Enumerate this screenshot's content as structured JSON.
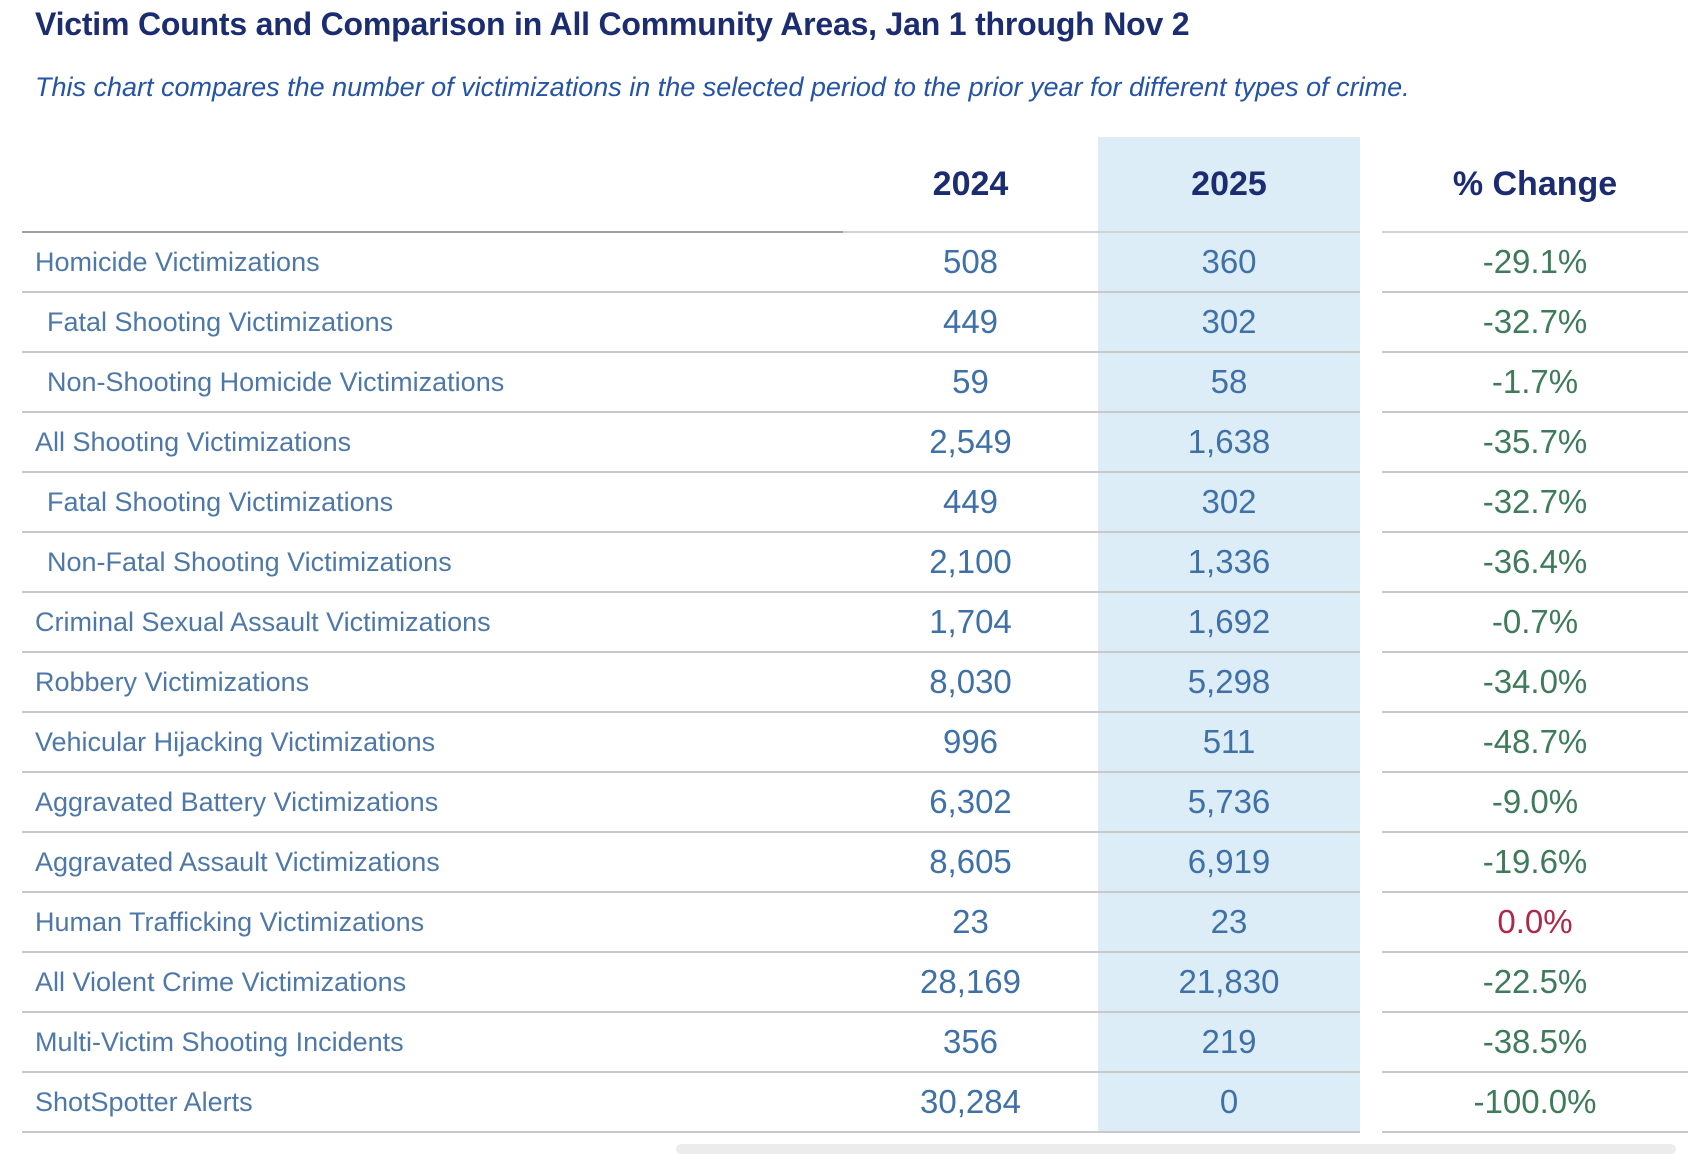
{
  "title": "Victim Counts and Comparison in All Community Areas, Jan 1 through Nov 2",
  "subtitle": "This chart compares the number of victimizations in the selected period to the prior year for different types of crime.",
  "colors": {
    "title_text": "#1b2d70",
    "subtitle_text": "#2553a6",
    "header_text": "#1b2d70",
    "row_label": "#4e78a8",
    "value_text": "#3f70a6",
    "change_decrease": "#3f7a5a",
    "change_flat": "#ab2a49",
    "highlight_bg": "#ddedf7",
    "grid_line": "#c8c8c8",
    "header_rule": "#a0a0a0"
  },
  "chart_data": {
    "type": "table",
    "title": "Victim Counts and Comparison in All Community Areas, Jan 1 through Nov 2",
    "subtitle": "This chart compares the number of victimizations in the selected period to the prior year for different types of crime.",
    "columns": [
      "2024",
      "2025",
      "% Change"
    ],
    "highlighted_column": "2025",
    "legend_note": "negative % change shown green, zero/positive shown red",
    "rows": [
      {
        "label": "Homicide Victimizations",
        "indent": false,
        "v2024": 508,
        "v2025": 360,
        "pct_change": -29.1,
        "d2024": "508",
        "d2025": "360",
        "d_change": "-29.1%"
      },
      {
        "label": "Fatal Shooting Victimizations",
        "indent": true,
        "v2024": 449,
        "v2025": 302,
        "pct_change": -32.7,
        "d2024": "449",
        "d2025": "302",
        "d_change": "-32.7%"
      },
      {
        "label": "Non-Shooting Homicide Victimizations",
        "indent": true,
        "v2024": 59,
        "v2025": 58,
        "pct_change": -1.7,
        "d2024": "59",
        "d2025": "58",
        "d_change": "-1.7%"
      },
      {
        "label": "All Shooting Victimizations",
        "indent": false,
        "v2024": 2549,
        "v2025": 1638,
        "pct_change": -35.7,
        "d2024": "2,549",
        "d2025": "1,638",
        "d_change": "-35.7%"
      },
      {
        "label": "Fatal Shooting Victimizations",
        "indent": true,
        "v2024": 449,
        "v2025": 302,
        "pct_change": -32.7,
        "d2024": "449",
        "d2025": "302",
        "d_change": "-32.7%"
      },
      {
        "label": "Non-Fatal Shooting Victimizations",
        "indent": true,
        "v2024": 2100,
        "v2025": 1336,
        "pct_change": -36.4,
        "d2024": "2,100",
        "d2025": "1,336",
        "d_change": "-36.4%"
      },
      {
        "label": "Criminal Sexual Assault Victimizations",
        "indent": false,
        "v2024": 1704,
        "v2025": 1692,
        "pct_change": -0.7,
        "d2024": "1,704",
        "d2025": "1,692",
        "d_change": "-0.7%"
      },
      {
        "label": "Robbery Victimizations",
        "indent": false,
        "v2024": 8030,
        "v2025": 5298,
        "pct_change": -34.0,
        "d2024": "8,030",
        "d2025": "5,298",
        "d_change": "-34.0%"
      },
      {
        "label": "Vehicular Hijacking Victimizations",
        "indent": false,
        "v2024": 996,
        "v2025": 511,
        "pct_change": -48.7,
        "d2024": "996",
        "d2025": "511",
        "d_change": "-48.7%"
      },
      {
        "label": "Aggravated Battery Victimizations",
        "indent": false,
        "v2024": 6302,
        "v2025": 5736,
        "pct_change": -9.0,
        "d2024": "6,302",
        "d2025": "5,736",
        "d_change": "-9.0%"
      },
      {
        "label": "Aggravated Assault Victimizations",
        "indent": false,
        "v2024": 8605,
        "v2025": 6919,
        "pct_change": -19.6,
        "d2024": "8,605",
        "d2025": "6,919",
        "d_change": "-19.6%"
      },
      {
        "label": "Human Trafficking Victimizations",
        "indent": false,
        "v2024": 23,
        "v2025": 23,
        "pct_change": 0.0,
        "d2024": "23",
        "d2025": "23",
        "d_change": "0.0%"
      },
      {
        "label": "All Violent Crime Victimizations",
        "indent": false,
        "v2024": 28169,
        "v2025": 21830,
        "pct_change": -22.5,
        "d2024": "28,169",
        "d2025": "21,830",
        "d_change": "-22.5%"
      },
      {
        "label": "Multi-Victim Shooting Incidents",
        "indent": false,
        "v2024": 356,
        "v2025": 219,
        "pct_change": -38.5,
        "d2024": "356",
        "d2025": "219",
        "d_change": "-38.5%"
      },
      {
        "label": "ShotSpotter Alerts",
        "indent": false,
        "v2024": 30284,
        "v2025": 0,
        "pct_change": -100.0,
        "d2024": "30,284",
        "d2025": "0",
        "d_change": "-100.0%"
      }
    ]
  }
}
